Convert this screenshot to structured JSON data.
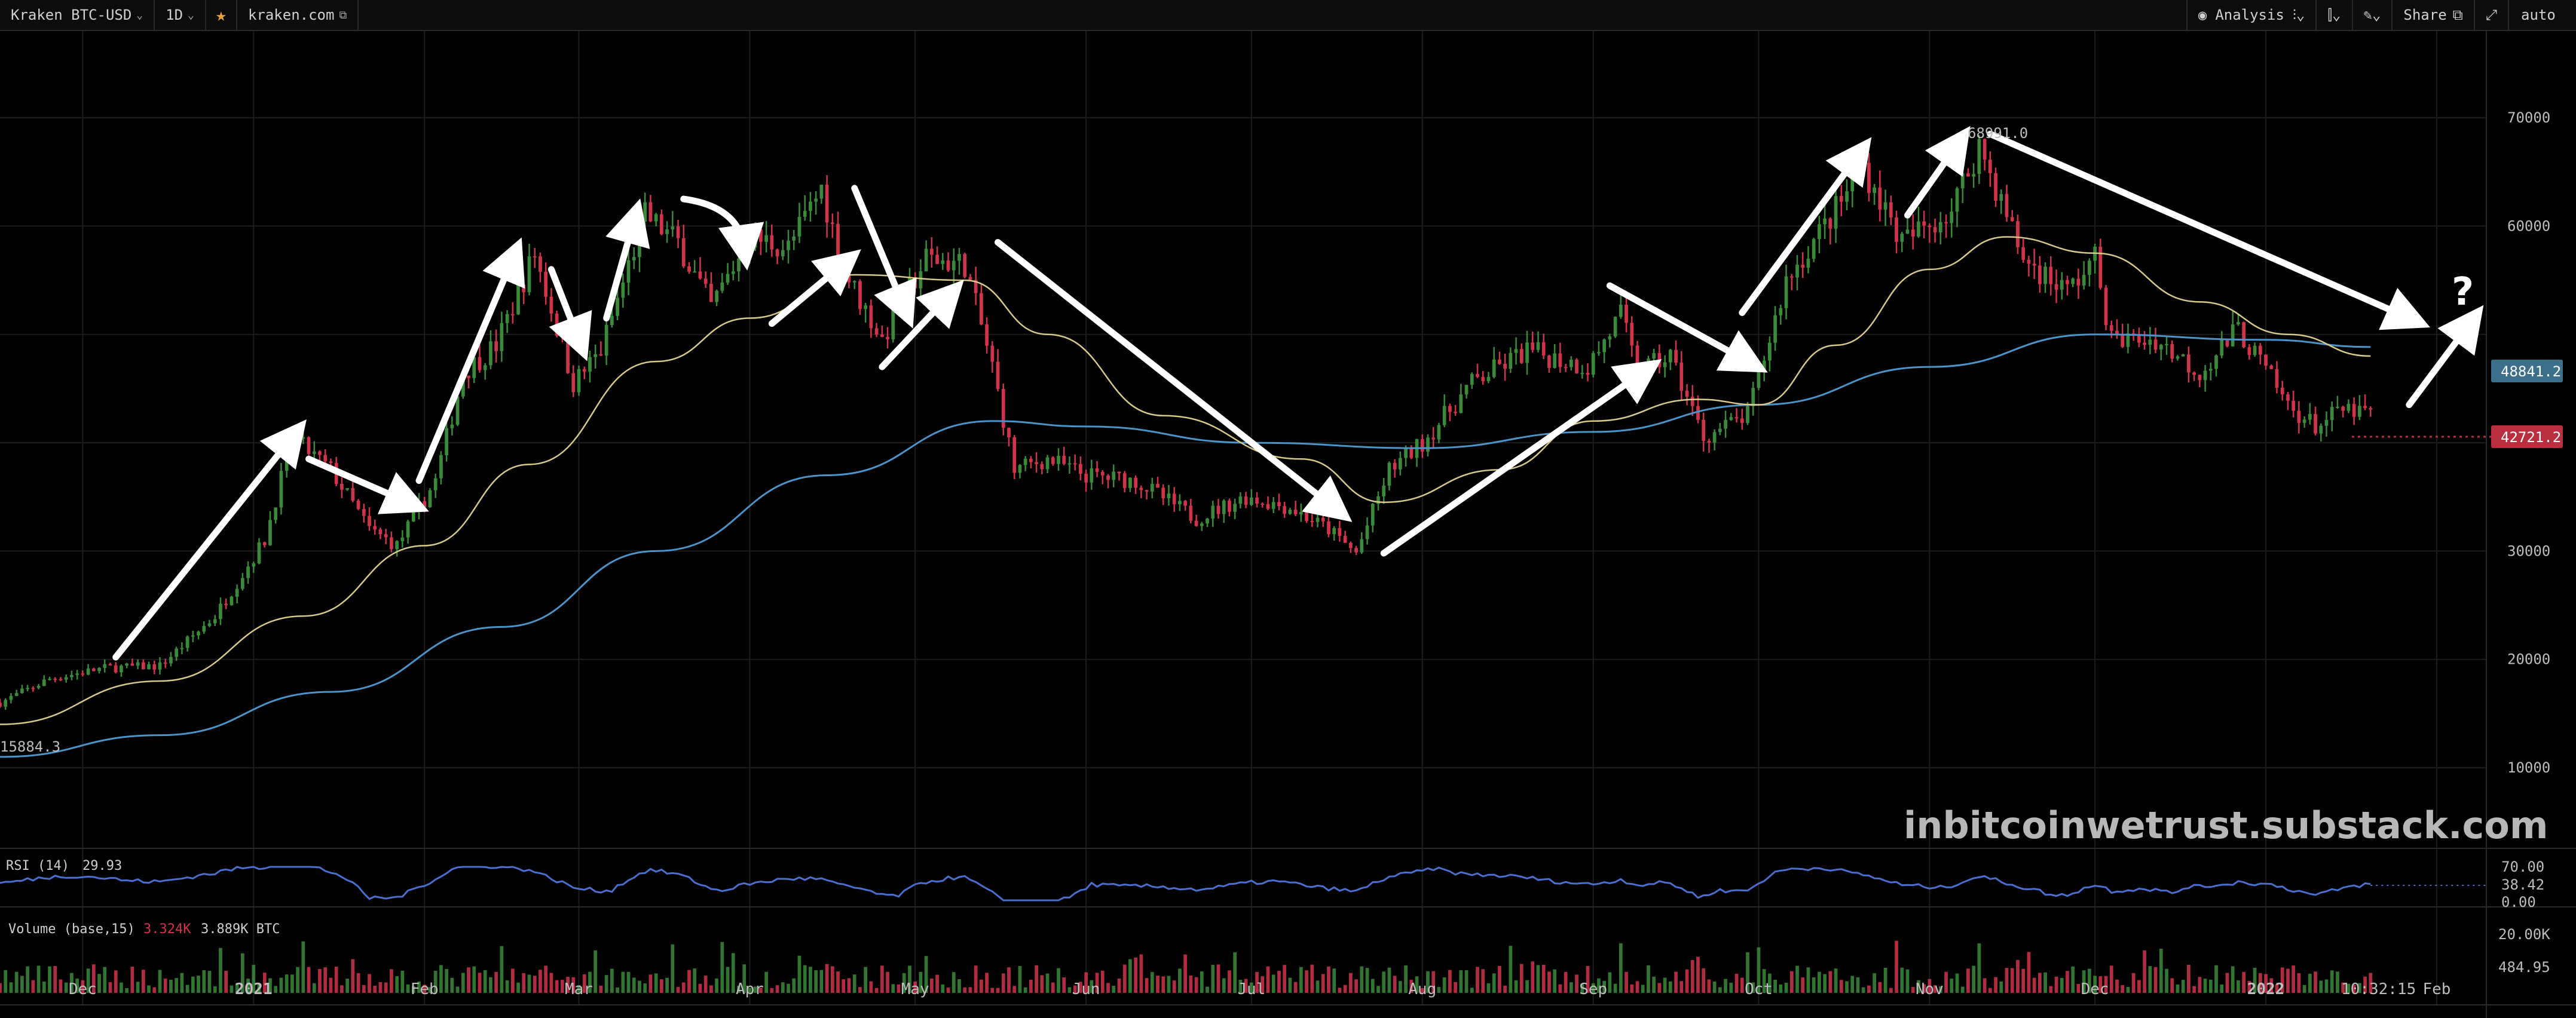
{
  "toolbar": {
    "symbol": "Kraken BTC-USD",
    "interval": "1D",
    "source": "kraken.com",
    "analysis": "Analysis",
    "share": "Share",
    "auto": "auto"
  },
  "watermark": "inbitcoinwetrust.substack.com",
  "question_mark": "?",
  "colors": {
    "up": "#3a8a3a",
    "down": "#d0344b",
    "ma_short": "#d7c98a",
    "ma_long": "#4b93c8",
    "rsi": "#4a6fd0",
    "current_price_tag": "#b92f3f",
    "ma_tag": "#3b6f8a"
  },
  "chart_data": {
    "type": "line",
    "yticks": [
      10000,
      20000,
      30000,
      40000,
      50000,
      60000,
      70000
    ],
    "ytick_labels": [
      "10000",
      "20000",
      "30000",
      "40000",
      "",
      "60000",
      "70000"
    ],
    "ylim": [
      3000,
      78000
    ],
    "x_labels": [
      "Dec",
      "2021",
      "Feb",
      "Mar",
      "Apr",
      "May",
      "Jun",
      "Jul",
      "Aug",
      "Sep",
      "Oct",
      "Nov",
      "Dec",
      "2022",
      "Feb"
    ],
    "x_label_dates": [
      "2020-12-01",
      "2021-01-01",
      "2021-02-01",
      "2021-03-01",
      "2021-04-01",
      "2021-05-01",
      "2021-06-01",
      "2021-07-01",
      "2021-08-01",
      "2021-09-01",
      "2021-10-01",
      "2021-11-01",
      "2021-12-01",
      "2022-01-01",
      "2022-02-01"
    ],
    "x_range": [
      "2020-11-16",
      "2022-02-10"
    ],
    "time_label": "10:32:15",
    "price_series": {
      "name": "BTC-USD",
      "points": [
        [
          "2020-11-16",
          16000
        ],
        [
          "2020-11-25",
          18200
        ],
        [
          "2020-12-05",
          19200
        ],
        [
          "2020-12-15",
          19400
        ],
        [
          "2020-12-25",
          24000
        ],
        [
          "2021-01-03",
          31000
        ],
        [
          "2021-01-08",
          40500
        ],
        [
          "2021-01-15",
          37500
        ],
        [
          "2021-01-22",
          32000
        ],
        [
          "2021-01-27",
          30500
        ],
        [
          "2021-02-03",
          36500
        ],
        [
          "2021-02-08",
          46500
        ],
        [
          "2021-02-14",
          49000
        ],
        [
          "2021-02-21",
          57500
        ],
        [
          "2021-02-28",
          45500
        ],
        [
          "2021-03-05",
          48500
        ],
        [
          "2021-03-13",
          61000
        ],
        [
          "2021-03-19",
          58500
        ],
        [
          "2021-03-25",
          52500
        ],
        [
          "2021-04-01",
          59000
        ],
        [
          "2021-04-08",
          58000
        ],
        [
          "2021-04-14",
          63500
        ],
        [
          "2021-04-18",
          56000
        ],
        [
          "2021-04-25",
          49500
        ],
        [
          "2021-05-03",
          57000
        ],
        [
          "2021-05-10",
          56500
        ],
        [
          "2021-05-15",
          47000
        ],
        [
          "2021-05-19",
          37500
        ],
        [
          "2021-05-25",
          38500
        ],
        [
          "2021-06-01",
          37000
        ],
        [
          "2021-06-10",
          36500
        ],
        [
          "2021-06-21",
          33000
        ],
        [
          "2021-06-30",
          35000
        ],
        [
          "2021-07-08",
          34000
        ],
        [
          "2021-07-15",
          32000
        ],
        [
          "2021-07-20",
          29800
        ],
        [
          "2021-07-26",
          37500
        ],
        [
          "2021-08-01",
          40000
        ],
        [
          "2021-08-10",
          45500
        ],
        [
          "2021-08-20",
          48500
        ],
        [
          "2021-08-31",
          47000
        ],
        [
          "2021-09-06",
          51800
        ],
        [
          "2021-09-09",
          46500
        ],
        [
          "2021-09-15",
          48000
        ],
        [
          "2021-09-21",
          40500
        ],
        [
          "2021-09-29",
          42500
        ],
        [
          "2021-10-06",
          55000
        ],
        [
          "2021-10-15",
          61500
        ],
        [
          "2021-10-20",
          65500
        ],
        [
          "2021-10-27",
          58500
        ],
        [
          "2021-11-05",
          61500
        ],
        [
          "2021-11-10",
          67500
        ],
        [
          "2021-11-18",
          57000
        ],
        [
          "2021-11-26",
          54000
        ],
        [
          "2021-12-01",
          57000
        ],
        [
          "2021-12-04",
          49500
        ],
        [
          "2021-12-12",
          49500
        ],
        [
          "2021-12-20",
          46500
        ],
        [
          "2021-12-27",
          50500
        ],
        [
          "2022-01-05",
          43500
        ],
        [
          "2022-01-10",
          41500
        ],
        [
          "2022-01-15",
          43000
        ],
        [
          "2022-01-20",
          42700
        ]
      ]
    },
    "ma_short": {
      "name": "",
      "points": [
        [
          "2020-11-16",
          14000
        ],
        [
          "2020-12-15",
          18000
        ],
        [
          "2021-01-10",
          24000
        ],
        [
          "2021-02-01",
          30500
        ],
        [
          "2021-02-20",
          38000
        ],
        [
          "2021-03-15",
          47500
        ],
        [
          "2021-04-01",
          51500
        ],
        [
          "2021-04-20",
          55500
        ],
        [
          "2021-05-10",
          55000
        ],
        [
          "2021-05-25",
          50000
        ],
        [
          "2021-06-15",
          42500
        ],
        [
          "2021-07-10",
          38500
        ],
        [
          "2021-07-25",
          34500
        ],
        [
          "2021-08-15",
          37500
        ],
        [
          "2021-09-01",
          42000
        ],
        [
          "2021-09-20",
          44000
        ],
        [
          "2021-10-01",
          43500
        ],
        [
          "2021-10-15",
          49000
        ],
        [
          "2021-11-01",
          56000
        ],
        [
          "2021-11-15",
          59000
        ],
        [
          "2021-12-01",
          57500
        ],
        [
          "2021-12-20",
          53000
        ],
        [
          "2022-01-05",
          50000
        ],
        [
          "2022-01-20",
          48000
        ]
      ]
    },
    "ma_long": {
      "name": "",
      "points": [
        [
          "2020-11-16",
          11000
        ],
        [
          "2020-12-15",
          13000
        ],
        [
          "2021-01-15",
          17000
        ],
        [
          "2021-02-15",
          23000
        ],
        [
          "2021-03-15",
          30000
        ],
        [
          "2021-04-15",
          37000
        ],
        [
          "2021-05-15",
          42000
        ],
        [
          "2021-06-01",
          41500
        ],
        [
          "2021-07-01",
          40000
        ],
        [
          "2021-08-01",
          39500
        ],
        [
          "2021-09-01",
          41000
        ],
        [
          "2021-10-01",
          43500
        ],
        [
          "2021-11-01",
          47000
        ],
        [
          "2021-12-01",
          50000
        ],
        [
          "2022-01-01",
          49500
        ],
        [
          "2022-01-20",
          48841
        ]
      ]
    },
    "annotations": {
      "high_label": "68991.0",
      "low_label": "15884.3",
      "price_tags": [
        "48841.2",
        "42721.2"
      ]
    },
    "rsi": {
      "label": "RSI (14)",
      "value_label": "29.93",
      "axis_labels": [
        "70.00",
        "38.42",
        "0.00"
      ]
    },
    "volume": {
      "label": "Volume (base,15)",
      "value1": "3.324K",
      "value2": "3.889K BTC",
      "axis_labels": [
        "20.00K",
        "484.95"
      ]
    }
  }
}
